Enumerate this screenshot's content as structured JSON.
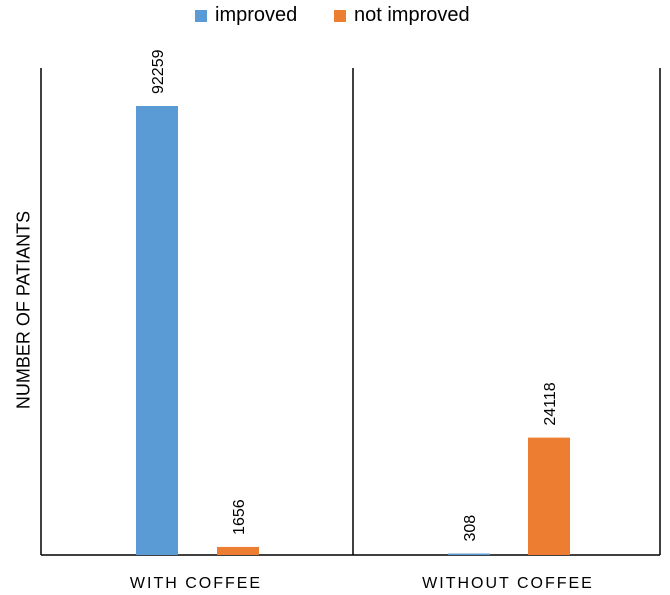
{
  "chart_data": {
    "type": "bar",
    "categories": [
      "WITH COFFEE",
      "WITHOUT COFFEE"
    ],
    "series": [
      {
        "name": "improved",
        "color": "#5B9BD5",
        "values": [
          92259,
          308
        ]
      },
      {
        "name": "not improved",
        "color": "#ED7D31",
        "values": [
          1656,
          24118
        ]
      }
    ],
    "title": "",
    "xlabel": "",
    "ylabel": "NUMBER OF PATIANTS",
    "ylim": [
      0,
      92259
    ],
    "grid": false,
    "legend": "top"
  }
}
